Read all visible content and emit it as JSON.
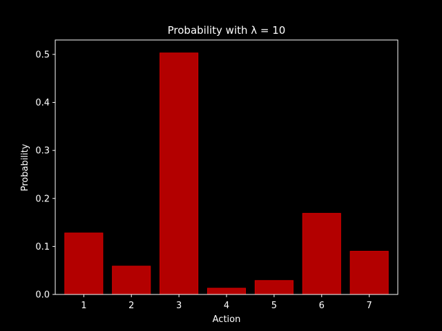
{
  "chart_data": {
    "type": "bar",
    "title": "Probability with λ = 10",
    "xlabel": "Action",
    "ylabel": "Probability",
    "categories": [
      "1",
      "2",
      "3",
      "4",
      "5",
      "6",
      "7"
    ],
    "values": [
      0.128,
      0.059,
      0.503,
      0.013,
      0.029,
      0.169,
      0.09
    ],
    "ylim": [
      0,
      0.53
    ],
    "yticks": [
      "0.0",
      "0.1",
      "0.2",
      "0.3",
      "0.4",
      "0.5"
    ],
    "grid": false,
    "colors": {
      "background": "#000000",
      "bar_fill": "#b30000",
      "bar_edge": "#d40000",
      "axes": "#ffffff",
      "text": "#ffffff"
    }
  }
}
